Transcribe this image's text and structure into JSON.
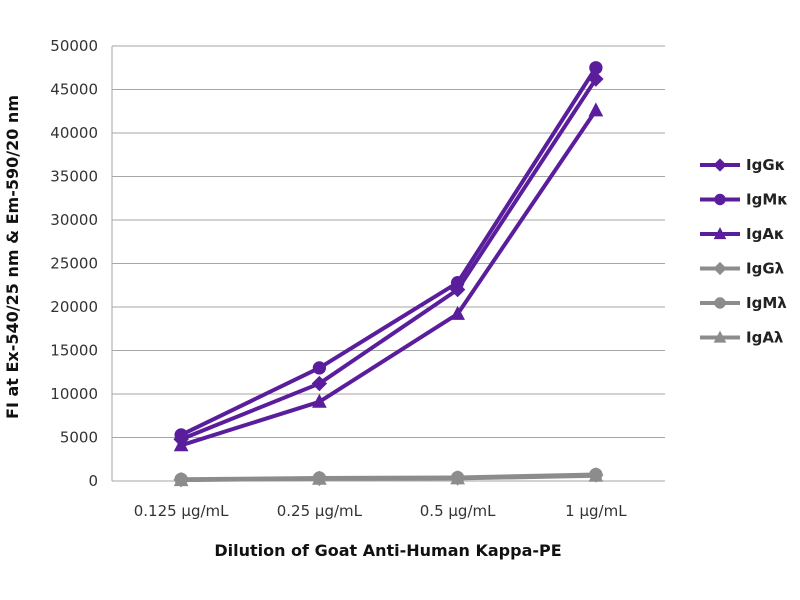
{
  "chart_data": {
    "type": "line",
    "title": "",
    "xlabel": "Dilution of Goat Anti-Human Kappa-PE",
    "ylabel": "FI at Ex-540/25 nm & Em-590/20 nm",
    "categories": [
      "0.125 µg/mL",
      "0.25 µg/mL",
      "0.5 µg/mL",
      "1 µg/mL"
    ],
    "ylim": [
      0,
      50000
    ],
    "yticks": [
      "0",
      "5000",
      "10000",
      "15000",
      "20000",
      "25000",
      "30000",
      "35000",
      "40000",
      "45000",
      "50000"
    ],
    "grid": "horizontal",
    "legend_position": "right",
    "series": [
      {
        "name": "IgGκ",
        "marker": "diamond",
        "color": "#5a1e9c",
        "values": [
          4800,
          11200,
          22000,
          46200
        ]
      },
      {
        "name": "IgMκ",
        "marker": "circle",
        "color": "#5a1e9c",
        "values": [
          5300,
          13000,
          22800,
          47500
        ]
      },
      {
        "name": "IgAκ",
        "marker": "triangle",
        "color": "#5a1e9c",
        "values": [
          4100,
          9100,
          19200,
          42600
        ]
      },
      {
        "name": "IgGλ",
        "marker": "diamond",
        "color": "#8c8c8c",
        "values": [
          150,
          300,
          350,
          700
        ]
      },
      {
        "name": "IgMλ",
        "marker": "circle",
        "color": "#8c8c8c",
        "values": [
          200,
          350,
          400,
          750
        ]
      },
      {
        "name": "IgAλ",
        "marker": "triangle",
        "color": "#8c8c8c",
        "values": [
          100,
          250,
          300,
          600
        ]
      }
    ]
  }
}
